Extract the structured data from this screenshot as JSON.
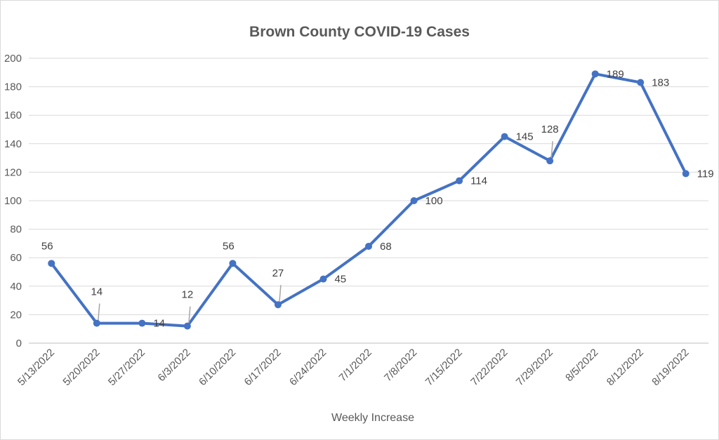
{
  "chart_data": {
    "type": "line",
    "title": "Brown County COVID-19 Cases",
    "xlabel": "Weekly Increase",
    "ylabel": "",
    "ylim": [
      0,
      200
    ],
    "yticks": [
      0,
      20,
      40,
      60,
      80,
      100,
      120,
      140,
      160,
      180,
      200
    ],
    "grid": true,
    "legend": "none",
    "categories": [
      "5/13/2022",
      "5/20/2022",
      "5/27/2022",
      "6/3/2022",
      "6/10/2022",
      "6/17/2022",
      "6/24/2022",
      "7/1/2022",
      "7/8/2022",
      "7/15/2022",
      "7/22/2022",
      "7/29/2022",
      "8/5/2022",
      "8/12/2022",
      "8/19/2022"
    ],
    "series": [
      {
        "values": [
          56,
          14,
          14,
          12,
          56,
          27,
          45,
          68,
          100,
          114,
          145,
          128,
          189,
          183,
          119
        ],
        "color": "#4472c4"
      }
    ]
  }
}
